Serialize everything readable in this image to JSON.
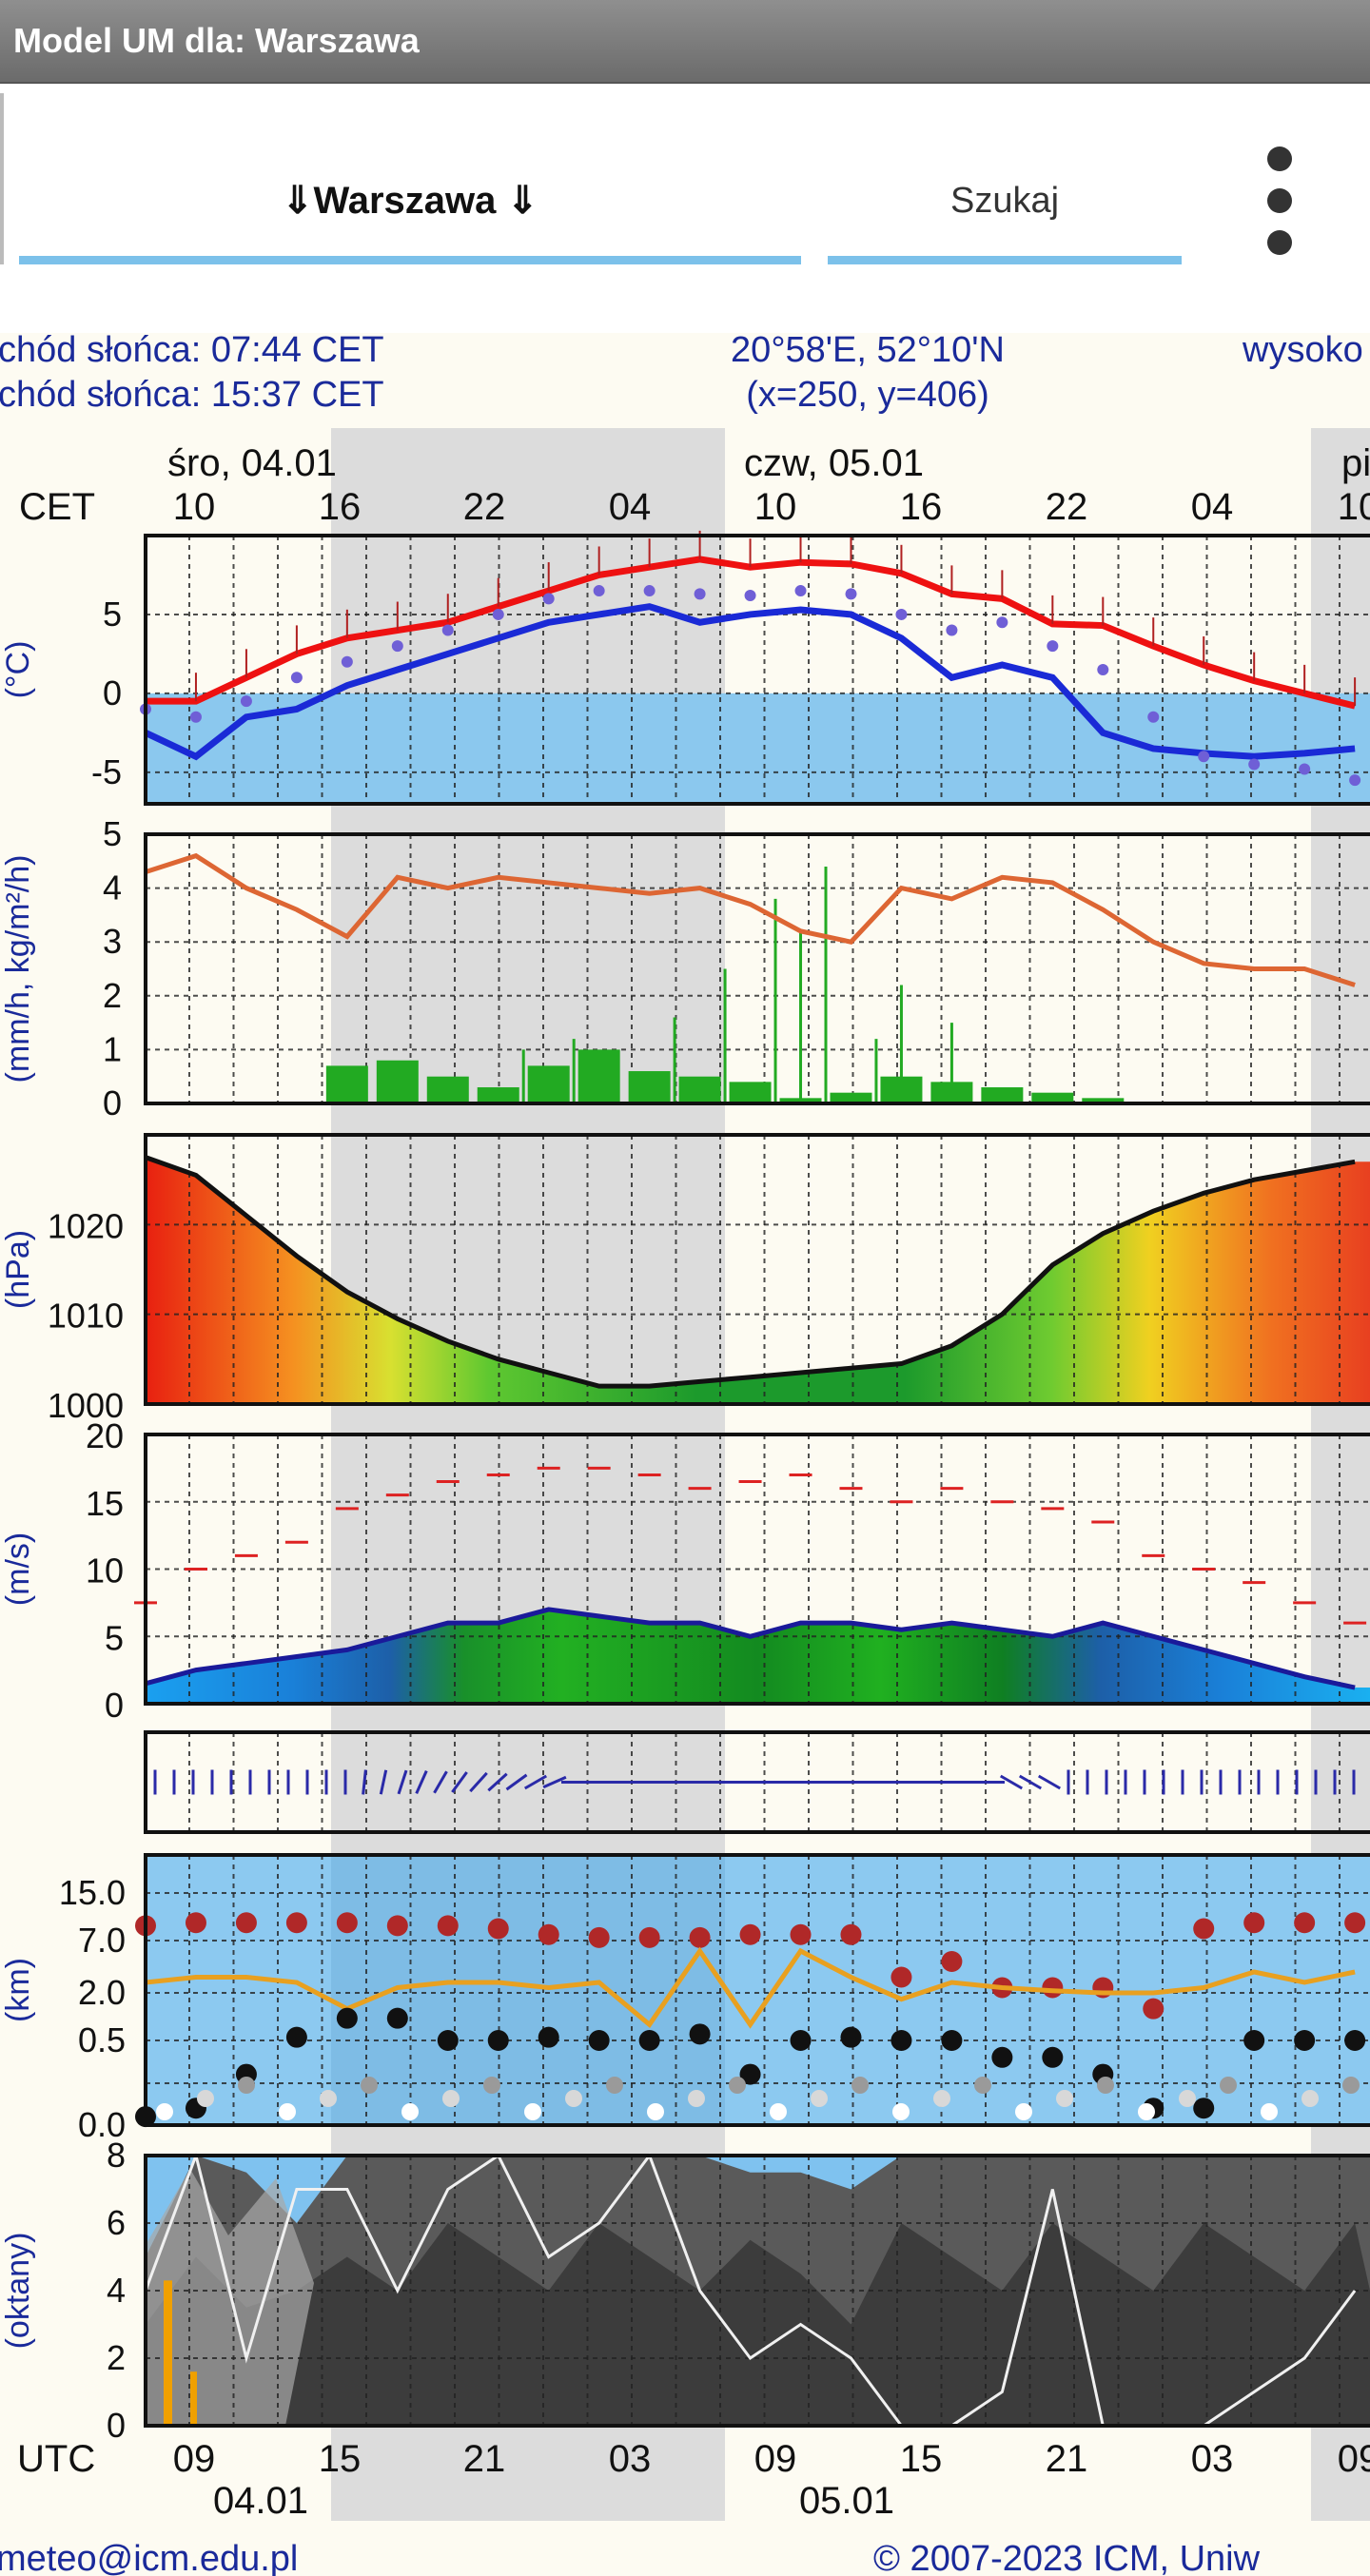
{
  "app": {
    "title": "Model UM dla: Warszawa"
  },
  "nav": {
    "city_label": "⇓Warszawa ⇓",
    "search_label": "Szukaj",
    "menu_icon": "more-vert-icon"
  },
  "header": {
    "sunrise": "chód słońca: 07:44 CET",
    "sunset": "chód słońca: 15:37 CET",
    "coords": "20°58'E, 52°10'N",
    "grid": "(x=250,  y=406)",
    "altitude_cut": "wysoko"
  },
  "top_axis": {
    "tz_label": "CET",
    "days": [
      "śro, 04.01",
      "czw, 05.01",
      "pi"
    ],
    "hours": [
      "10",
      "16",
      "22",
      "04",
      "10",
      "16",
      "22",
      "04",
      "10"
    ]
  },
  "bottom_axis": {
    "tz_label": "UTC",
    "hours": [
      "09",
      "15",
      "21",
      "03",
      "09",
      "15",
      "21",
      "03",
      "09"
    ],
    "dates": [
      "04.01",
      "05.01"
    ]
  },
  "footer": {
    "left": "meteo@icm.edu.pl",
    "right": "© 2007-2023 ICM, Uniw"
  },
  "colors": {
    "temp": "#ee1111",
    "dew": "#1a2ad6",
    "chill": "#6f5fd6",
    "precip_line": "#dd6633",
    "precip_bar": "#22aa22",
    "wind_line": "#1a1a9a",
    "gust": "#dd2222",
    "arrow": "#2a2aa8",
    "cloud_line": "#e8a020",
    "night": "#dcdcdc"
  },
  "chart_data": [
    {
      "type": "line",
      "panel": "temperature",
      "ylabel": "(°C)",
      "ylim": [
        -7,
        10
      ],
      "yticks": [
        -5,
        0,
        5
      ],
      "x": [
        0,
        2,
        4,
        6,
        8,
        10,
        12,
        14,
        16,
        18,
        20,
        22,
        24,
        26,
        28,
        30,
        32,
        34,
        36,
        38,
        40,
        42,
        44,
        46,
        48
      ],
      "series": [
        {
          "name": "temp",
          "values": [
            -0.5,
            -0.5,
            1,
            2.5,
            3.5,
            4,
            4.5,
            5.5,
            6.5,
            7.5,
            8,
            8.5,
            8,
            8.3,
            8.2,
            7.6,
            6.3,
            6,
            4.4,
            4.3,
            3,
            1.8,
            0.8,
            0,
            -0.8
          ]
        },
        {
          "name": "dew",
          "values": [
            -2.5,
            -4,
            -1.5,
            -1,
            0.5,
            1.5,
            2.5,
            3.5,
            4.5,
            5,
            5.5,
            4.5,
            5,
            5.3,
            5,
            3.5,
            1,
            1.8,
            1,
            -2.5,
            -3.5,
            -3.8,
            -4,
            -3.8,
            -3.5
          ]
        },
        {
          "name": "chill",
          "values": [
            -1,
            -1.5,
            -0.5,
            1,
            2,
            3,
            4,
            5,
            6,
            6.5,
            6.5,
            6.3,
            6.2,
            6.5,
            6.3,
            5,
            4,
            4.5,
            3,
            1.5,
            -1.5,
            -4,
            -4.5,
            -4.8,
            -5.5
          ]
        }
      ]
    },
    {
      "type": "bar",
      "panel": "precipitation",
      "ylabel": "(mm/h, kg/m²/h)",
      "ylim": [
        0,
        5
      ],
      "yticks": [
        0,
        1,
        2,
        3,
        4,
        5
      ],
      "x": [
        0,
        2,
        4,
        6,
        8,
        10,
        12,
        14,
        16,
        18,
        20,
        22,
        24,
        26,
        28,
        30,
        32,
        34,
        36,
        38,
        40,
        42,
        44,
        46,
        48
      ],
      "line": [
        4.3,
        4.6,
        4.0,
        3.6,
        3.1,
        4.2,
        4.0,
        4.2,
        4.1,
        4.0,
        3.9,
        4.0,
        3.7,
        3.2,
        3.0,
        4.0,
        3.8,
        4.2,
        4.1,
        3.6,
        3.0,
        2.6,
        2.5,
        2.5,
        2.2
      ],
      "values": [
        0,
        0,
        0,
        0,
        0.7,
        0.8,
        0.5,
        0.3,
        0.7,
        1.0,
        0.6,
        0.5,
        0.4,
        0.1,
        0.2,
        0.5,
        0.4,
        0.3,
        0.2,
        0.1,
        0,
        0,
        0,
        0,
        0
      ]
    },
    {
      "type": "area",
      "panel": "pressure",
      "ylabel": "(hPa)",
      "ylim": [
        1000,
        1030
      ],
      "yticks": [
        1000,
        1010,
        1020
      ],
      "x": [
        0,
        2,
        4,
        6,
        8,
        10,
        12,
        14,
        16,
        18,
        20,
        22,
        24,
        26,
        28,
        30,
        32,
        34,
        36,
        38,
        40,
        42,
        44,
        46,
        48
      ],
      "values": [
        1027.5,
        1025.5,
        1021,
        1016.5,
        1012.5,
        1009.5,
        1007,
        1005,
        1003.5,
        1002,
        1002,
        1002.5,
        1003,
        1003.5,
        1004,
        1004.5,
        1006.5,
        1010,
        1015.5,
        1019,
        1021.5,
        1023.5,
        1025,
        1026,
        1027
      ]
    },
    {
      "type": "area",
      "panel": "wind",
      "ylabel": "(m/s)",
      "ylim": [
        0,
        20
      ],
      "yticks": [
        0,
        5,
        10,
        15,
        20
      ],
      "x": [
        0,
        2,
        4,
        6,
        8,
        10,
        12,
        14,
        16,
        18,
        20,
        22,
        24,
        26,
        28,
        30,
        32,
        34,
        36,
        38,
        40,
        42,
        44,
        46,
        48
      ],
      "speed": [
        1.5,
        2.5,
        3,
        3.5,
        4,
        5,
        6,
        6,
        7,
        6.5,
        6,
        6,
        5,
        6,
        6,
        5.5,
        6,
        5.5,
        5,
        6,
        5,
        4,
        3,
        2,
        1.2
      ],
      "gust": [
        7.5,
        10,
        11,
        12,
        14.5,
        15.5,
        16.5,
        17,
        17.5,
        17.5,
        17,
        16,
        16.5,
        17,
        16,
        15,
        16,
        15,
        14.5,
        13.5,
        11,
        10,
        9,
        7.5,
        6
      ]
    },
    {
      "type": "scatter",
      "panel": "cloud-base",
      "ylabel": "(km)",
      "yticks": [
        "0.0",
        "0.5",
        "2.0",
        "7.0",
        "15.0"
      ],
      "x": [
        0,
        2,
        4,
        6,
        8,
        10,
        12,
        14,
        16,
        18,
        20,
        22,
        24,
        26,
        28,
        30,
        32,
        34,
        36,
        38,
        40,
        42,
        44,
        46,
        48
      ],
      "series": [
        {
          "name": "high",
          "values": [
            9.5,
            10,
            10,
            10,
            10,
            9.5,
            9.5,
            9,
            8,
            7.5,
            7.5,
            7.5,
            8,
            8,
            8,
            3.5,
            5,
            2.5,
            2.5,
            2.5,
            1.5,
            9,
            10,
            10,
            10
          ]
        },
        {
          "name": "line",
          "values": [
            3,
            3.5,
            3.5,
            3,
            1.5,
            2.5,
            3,
            3,
            2.5,
            3,
            1,
            6,
            1,
            6,
            3.5,
            1.8,
            3,
            2.5,
            2.2,
            2,
            2,
            2.5,
            4,
            3,
            4
          ]
        },
        {
          "name": "low",
          "values": [
            0.05,
            0.1,
            0.3,
            0.6,
            1.2,
            1.2,
            0.5,
            0.5,
            0.6,
            0.5,
            0.5,
            0.7,
            0.3,
            0.5,
            0.6,
            0.5,
            0.5,
            0.4,
            0.4,
            0.3,
            0.1,
            0.1,
            0.5,
            0.5,
            0.5
          ]
        }
      ]
    },
    {
      "type": "area",
      "panel": "cloud-cover",
      "ylabel": "(oktany)",
      "ylim": [
        0,
        8
      ],
      "yticks": [
        0,
        2,
        4,
        6,
        8
      ],
      "x": [
        0,
        2,
        4,
        6,
        8,
        10,
        12,
        14,
        16,
        18,
        20,
        22,
        24,
        26,
        28,
        30,
        32,
        34,
        36,
        38,
        40,
        42,
        44,
        46,
        48
      ],
      "total": [
        5,
        8,
        7.5,
        6,
        8,
        8,
        8,
        8,
        8,
        8,
        8,
        8,
        7.5,
        7.5,
        7,
        8,
        8,
        8,
        8,
        8,
        8,
        8,
        8,
        8,
        8
      ],
      "line": [
        4,
        8,
        2,
        7,
        7,
        4,
        7,
        8,
        5,
        6,
        8,
        4,
        2,
        3,
        2,
        0,
        0,
        1,
        7,
        0,
        0,
        0,
        1,
        2,
        4
      ]
    }
  ]
}
